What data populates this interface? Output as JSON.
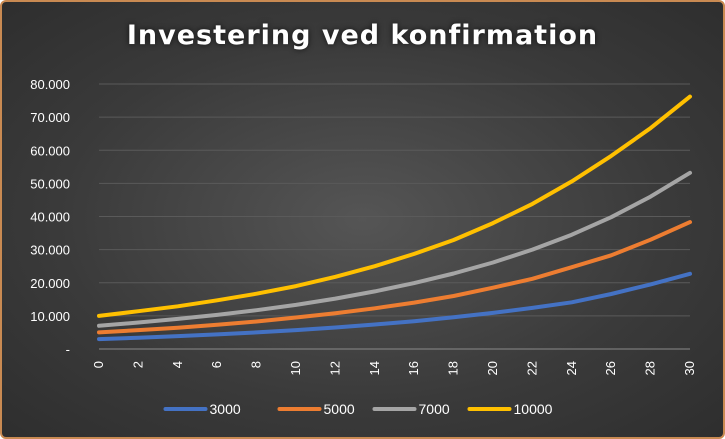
{
  "chart_data": {
    "type": "line",
    "title": "Investering ved konfirmation",
    "xlabel": "",
    "ylabel": "",
    "xlim": [
      0,
      30
    ],
    "ylim": [
      0,
      80000
    ],
    "y_ticks": [
      {
        "value": 0,
        "label": "-"
      },
      {
        "value": 10000,
        "label": "10.000"
      },
      {
        "value": 20000,
        "label": "20.000"
      },
      {
        "value": 30000,
        "label": "30.000"
      },
      {
        "value": 40000,
        "label": "40.000"
      },
      {
        "value": 50000,
        "label": "50.000"
      },
      {
        "value": 60000,
        "label": "60.000"
      },
      {
        "value": 70000,
        "label": "70.000"
      },
      {
        "value": 80000,
        "label": "80.000"
      }
    ],
    "x_ticks": [
      0,
      2,
      4,
      6,
      8,
      10,
      12,
      14,
      16,
      18,
      20,
      22,
      24,
      26,
      28,
      30
    ],
    "grid": true,
    "legend_position": "bottom",
    "x": [
      0,
      2,
      4,
      6,
      8,
      10,
      12,
      14,
      16,
      18,
      20,
      22,
      24,
      26,
      28,
      30
    ],
    "series": [
      {
        "name": "3000",
        "color": "#4472c4",
        "values": [
          3000,
          3400,
          3900,
          4400,
          5000,
          5700,
          6500,
          7400,
          8400,
          9600,
          10900,
          12400,
          14100,
          16600,
          19500,
          22700
        ]
      },
      {
        "name": "5000",
        "color": "#ed7d31",
        "values": [
          5000,
          5700,
          6400,
          7300,
          8300,
          9500,
          10800,
          12300,
          14000,
          16000,
          18500,
          21200,
          24700,
          28300,
          33000,
          38300
        ]
      },
      {
        "name": "7000",
        "color": "#a5a5a5",
        "values": [
          7000,
          8000,
          9100,
          10300,
          11700,
          13300,
          15200,
          17400,
          19900,
          22800,
          26100,
          30000,
          34500,
          39800,
          46000,
          53200
        ]
      },
      {
        "name": "10000",
        "color": "#ffc000",
        "values": [
          10000,
          11400,
          12900,
          14700,
          16700,
          19000,
          21800,
          25000,
          28700,
          32900,
          38000,
          43800,
          50600,
          58300,
          66700,
          76200
        ]
      }
    ]
  }
}
